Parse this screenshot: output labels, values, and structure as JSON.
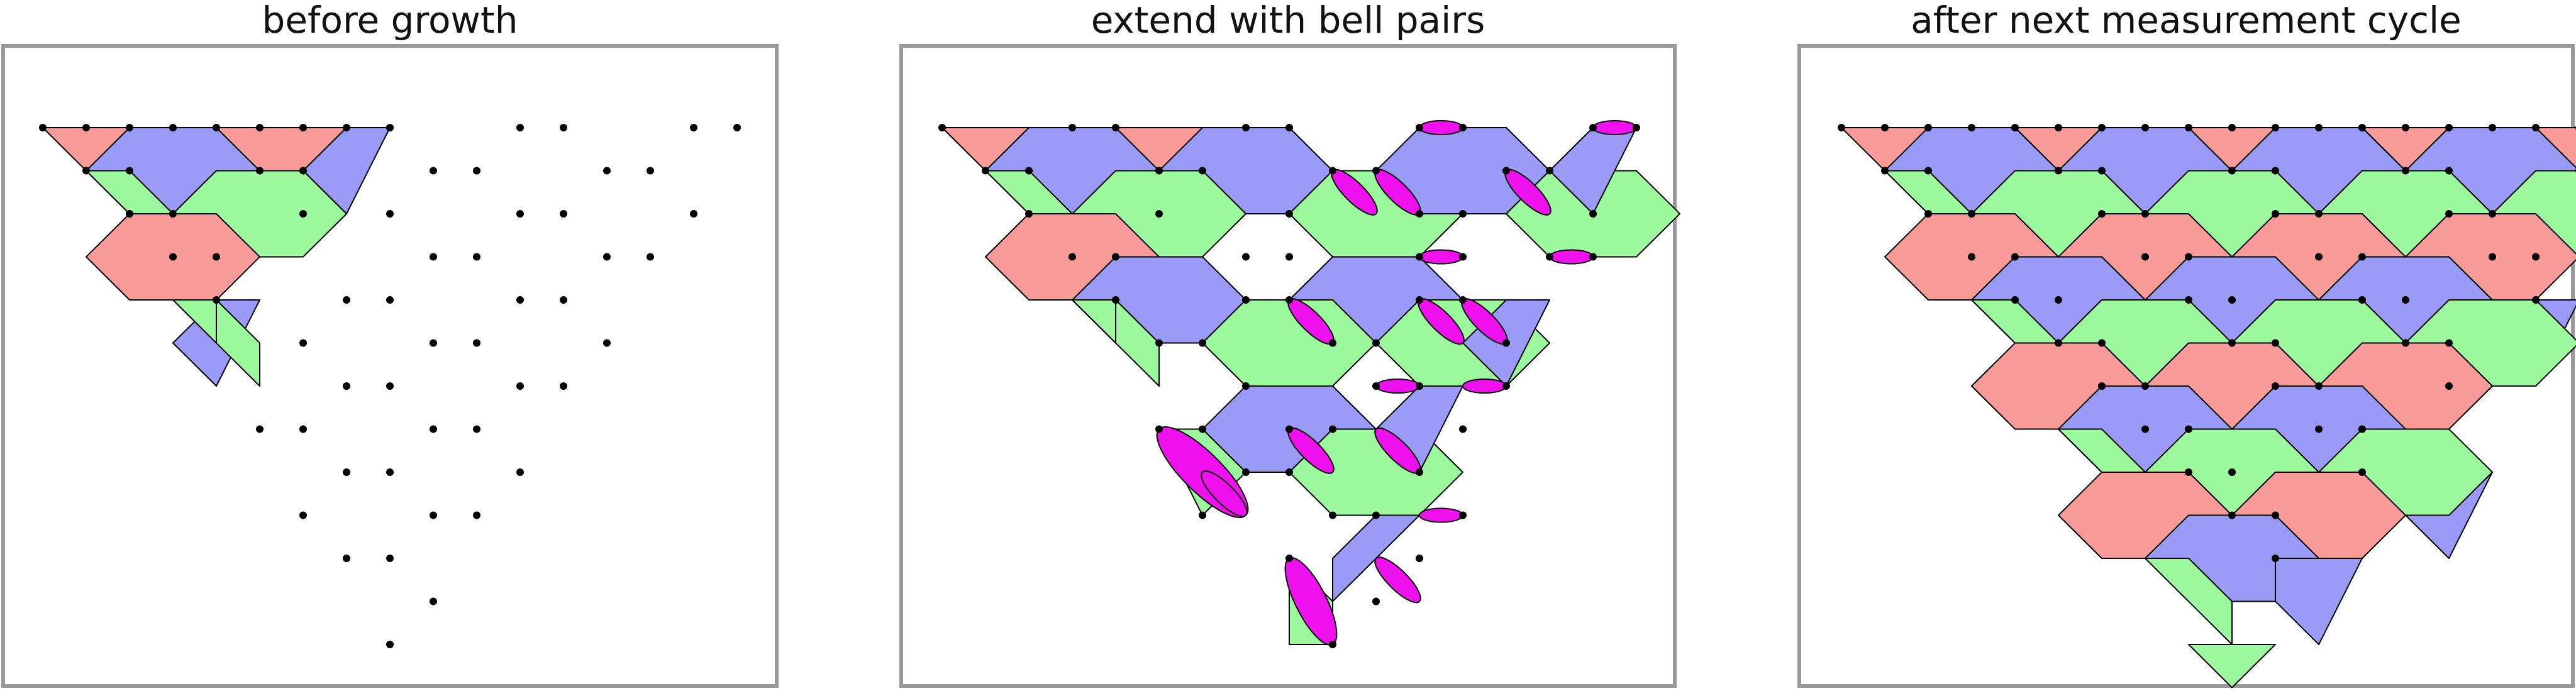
{
  "panels": [
    {
      "title": "before growth"
    },
    {
      "title": "extend with bell pairs"
    },
    {
      "title": "after next measurement cycle"
    }
  ],
  "colors": {
    "red": "#f99b98",
    "green": "#9cf99d",
    "blue": "#999bf6",
    "bell": "#ee11ee",
    "vertex": "#000000",
    "frame": "#9a9a9a"
  }
}
